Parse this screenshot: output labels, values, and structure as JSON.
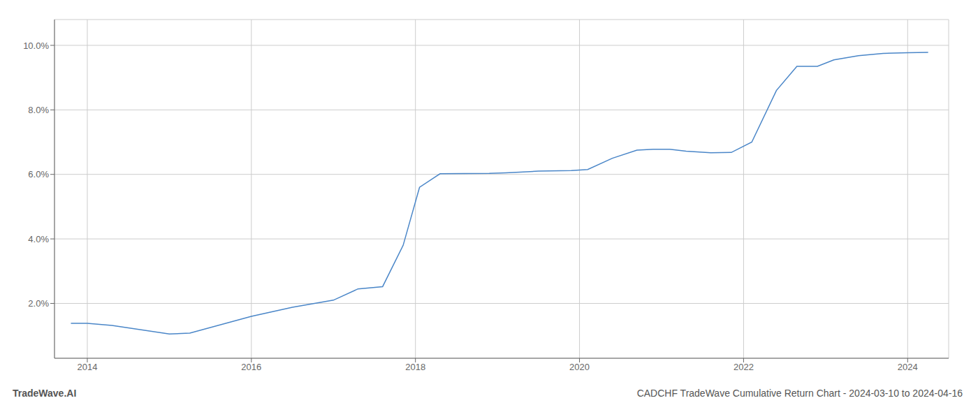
{
  "chart_data": {
    "type": "line",
    "title": "CADCHF TradeWave Cumulative Return Chart - 2024-03-10 to 2024-04-16",
    "annotations": [
      "TradeWave.AI"
    ],
    "x": [
      2013.8,
      2014.0,
      2014.3,
      2015.0,
      2015.25,
      2016.0,
      2016.5,
      2017.0,
      2017.3,
      2017.6,
      2017.85,
      2018.05,
      2018.3,
      2018.9,
      2019.1,
      2019.5,
      2019.9,
      2020.1,
      2020.4,
      2020.7,
      2020.9,
      2021.1,
      2021.3,
      2021.6,
      2021.85,
      2022.1,
      2022.4,
      2022.65,
      2022.9,
      2023.1,
      2023.4,
      2023.7,
      2024.0,
      2024.25
    ],
    "values": [
      1.38,
      1.38,
      1.32,
      1.05,
      1.08,
      1.6,
      1.88,
      2.1,
      2.45,
      2.52,
      3.8,
      5.6,
      6.02,
      6.03,
      6.05,
      6.1,
      6.12,
      6.15,
      6.5,
      6.75,
      6.78,
      6.78,
      6.72,
      6.67,
      6.68,
      7.0,
      8.6,
      9.35,
      9.35,
      9.55,
      9.68,
      9.75,
      9.77,
      9.78
    ],
    "color": "#4a86c8",
    "xlim": [
      2013.6,
      2024.5
    ],
    "ylim": [
      0.3,
      10.8
    ],
    "xticks": [
      2014,
      2016,
      2018,
      2020,
      2022,
      2024
    ],
    "yticks": [
      {
        "value": 2.0,
        "label": "2.0%"
      },
      {
        "value": 4.0,
        "label": "4.0%"
      },
      {
        "value": 6.0,
        "label": "6.0%"
      },
      {
        "value": 8.0,
        "label": "8.0%"
      },
      {
        "value": 10.0,
        "label": "10.0%"
      }
    ],
    "grid": true
  }
}
